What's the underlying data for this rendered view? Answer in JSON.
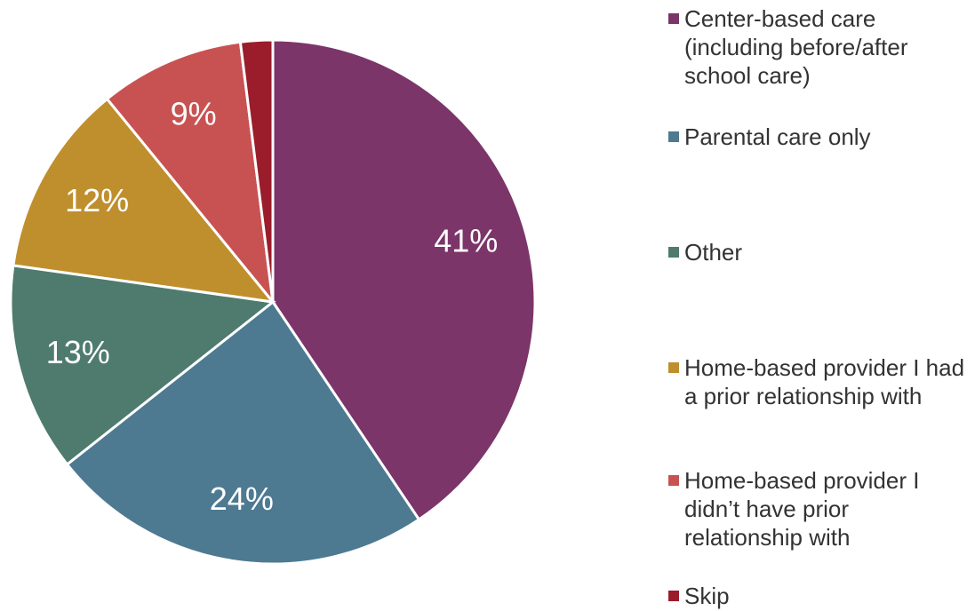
{
  "chart_data": {
    "type": "pie",
    "categories": [
      "Center-based care (including before/after school care)",
      "Parental care only",
      "Other",
      "Home-based provider I had a prior relationship with",
      "Home-based provider I didn’t have prior relationship with",
      "Skip"
    ],
    "values": [
      41,
      24,
      13,
      12,
      9,
      2
    ],
    "value_labels": [
      "41%",
      "24%",
      "13%",
      "12%",
      "9%",
      null
    ],
    "colors": [
      "#7b3569",
      "#4d7a91",
      "#4e7b6d",
      "#bf8f2e",
      "#c85252",
      "#9b1c2a"
    ],
    "legend": "right"
  }
}
